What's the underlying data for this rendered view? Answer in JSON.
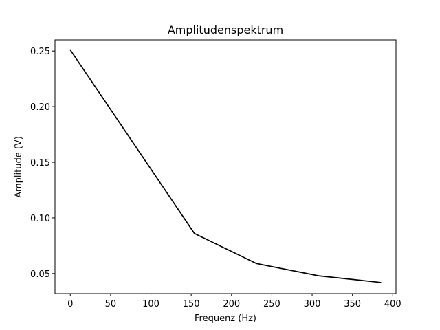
{
  "chart_data": {
    "type": "line",
    "title": "Amplitudenspektrum",
    "xlabel": "Frequenz (Hz)",
    "ylabel": "Amplitude  (V)",
    "xlim": [
      -19,
      404
    ],
    "ylim": [
      0.032,
      0.26
    ],
    "x_ticks": [
      0,
      50,
      100,
      150,
      200,
      250,
      300,
      350,
      400
    ],
    "x_tick_labels": [
      "0",
      "50",
      "100",
      "150",
      "200",
      "250",
      "300",
      "350",
      "400"
    ],
    "y_ticks": [
      0.05,
      0.1,
      0.15,
      0.2,
      0.25
    ],
    "y_tick_labels": [
      "0.05",
      "0.10",
      "0.15",
      "0.20",
      "0.25"
    ],
    "grid": false,
    "series": [
      {
        "color": "#000000",
        "x": [
          0,
          154,
          231,
          308,
          385
        ],
        "y": [
          0.251,
          0.086,
          0.059,
          0.048,
          0.042
        ]
      }
    ]
  }
}
